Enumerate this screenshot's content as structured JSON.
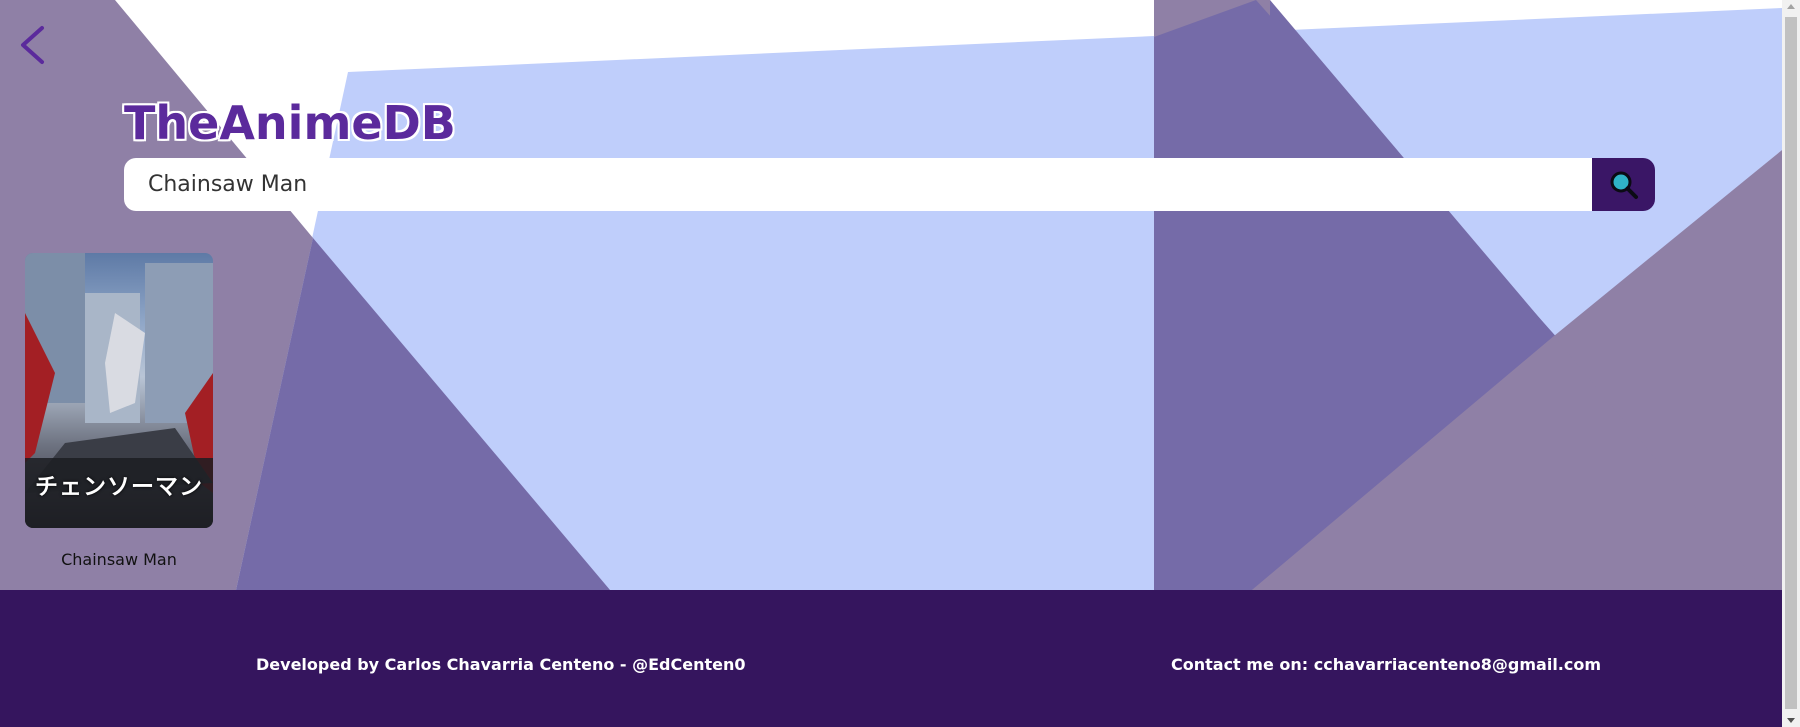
{
  "header": {
    "logo": "TheAnimeDB",
    "back_icon": "chevron-left-icon"
  },
  "search": {
    "value": "Chainsaw Man",
    "placeholder": "",
    "button_icon": "search-icon"
  },
  "results": [
    {
      "title": "Chainsaw Man",
      "poster_text": "チェンソーマン"
    }
  ],
  "footer": {
    "developer": "Developed by Carlos Chavarria Centeno - @EdCenten0",
    "contact": "Contact me on: cchavarriacenteno8@gmail.com"
  },
  "colors": {
    "brand_purple": "#5b2a9c",
    "footer_bg": "#35155e",
    "search_button_bg": "#3a1666",
    "search_icon": "#2fb3c7",
    "bg_light_blue": "#bfcefb",
    "bg_gray_purple": "#8f80a6",
    "bg_dark_purple": "#756ba8"
  }
}
